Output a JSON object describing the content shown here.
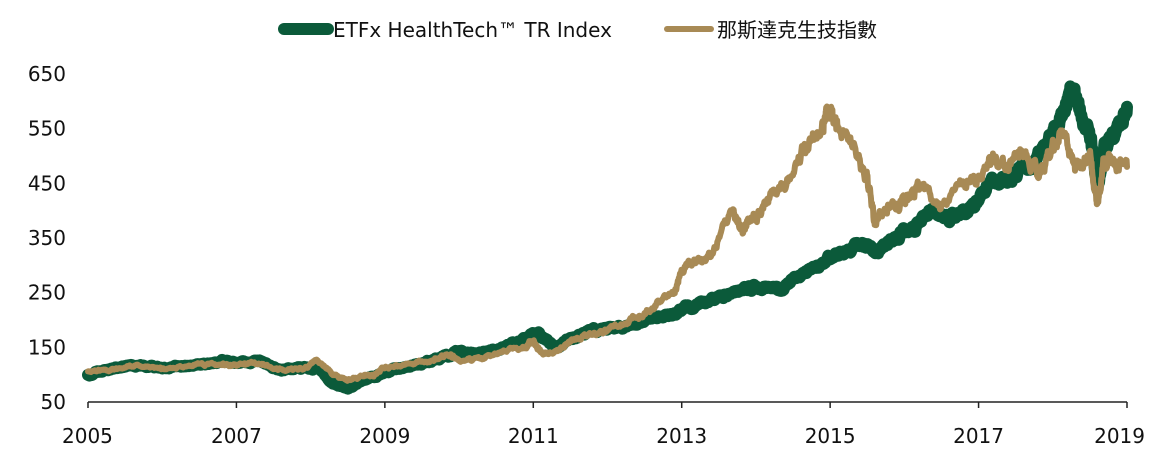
{
  "chart_data": {
    "type": "line",
    "title": "",
    "xlabel": "",
    "ylabel": "",
    "xlim": [
      2005,
      2019
    ],
    "ylim": [
      50,
      650
    ],
    "x_ticks": [
      "2005",
      "2007",
      "2009",
      "2011",
      "2013",
      "2015",
      "2017",
      "2019"
    ],
    "y_ticks": [
      "50",
      "150",
      "250",
      "350",
      "450",
      "550",
      "650"
    ],
    "grid": false,
    "legend_position": "top-center",
    "series": [
      {
        "name": "ETFx HealthTech™ TR Index",
        "color": "#0b5a3a",
        "x": [
          2005.0,
          2005.3,
          2005.6,
          2006.0,
          2006.4,
          2006.8,
          2007.0,
          2007.3,
          2007.6,
          2007.9,
          2008.1,
          2008.3,
          2008.5,
          2008.7,
          2008.85,
          2009.0,
          2009.3,
          2009.6,
          2009.85,
          2010.0,
          2010.3,
          2010.6,
          2010.9,
          2011.0,
          2011.1,
          2011.3,
          2011.5,
          2011.8,
          2012.0,
          2012.3,
          2012.6,
          2012.9,
          2013.2,
          2013.5,
          2013.8,
          2014.0,
          2014.3,
          2014.5,
          2014.8,
          2015.0,
          2015.2,
          2015.4,
          2015.6,
          2015.8,
          2016.0,
          2016.2,
          2016.4,
          2016.6,
          2016.8,
          2017.0,
          2017.2,
          2017.4,
          2017.6,
          2017.8,
          2018.0,
          2018.15,
          2018.25,
          2018.35,
          2018.5,
          2018.6,
          2018.7,
          2018.85,
          2019.0
        ],
        "values": [
          100,
          108,
          118,
          112,
          118,
          124,
          122,
          125,
          108,
          112,
          112,
          85,
          75,
          90,
          95,
          105,
          115,
          125,
          135,
          142,
          138,
          150,
          165,
          175,
          170,
          150,
          165,
          180,
          185,
          190,
          200,
          210,
          230,
          240,
          255,
          262,
          255,
          270,
          295,
          315,
          325,
          340,
          325,
          345,
          360,
          380,
          400,
          385,
          395,
          420,
          455,
          460,
          480,
          495,
          540,
          580,
          620,
          590,
          540,
          440,
          520,
          540,
          590
        ]
      },
      {
        "name": "那斯達克生技指數",
        "color": "#a88a55",
        "x": [
          2005.0,
          2005.3,
          2005.6,
          2006.0,
          2006.4,
          2006.8,
          2007.0,
          2007.3,
          2007.6,
          2007.9,
          2008.1,
          2008.3,
          2008.5,
          2008.7,
          2008.85,
          2009.0,
          2009.3,
          2009.6,
          2009.85,
          2010.0,
          2010.3,
          2010.6,
          2010.9,
          2011.0,
          2011.1,
          2011.3,
          2011.5,
          2011.8,
          2012.0,
          2012.3,
          2012.6,
          2012.9,
          2013.0,
          2013.2,
          2013.4,
          2013.7,
          2013.8,
          2014.0,
          2014.2,
          2014.5,
          2014.7,
          2014.9,
          2015.0,
          2015.1,
          2015.3,
          2015.5,
          2015.6,
          2015.8,
          2016.0,
          2016.2,
          2016.5,
          2016.8,
          2017.0,
          2017.2,
          2017.4,
          2017.6,
          2017.8,
          2018.0,
          2018.15,
          2018.3,
          2018.5,
          2018.6,
          2018.7,
          2018.85,
          2019.0
        ],
        "values": [
          105,
          108,
          118,
          110,
          118,
          120,
          118,
          122,
          110,
          110,
          125,
          100,
          90,
          98,
          100,
          112,
          120,
          125,
          138,
          125,
          130,
          145,
          150,
          160,
          140,
          140,
          160,
          175,
          185,
          200,
          220,
          250,
          280,
          310,
          320,
          400,
          370,
          390,
          420,
          470,
          520,
          560,
          590,
          560,
          520,
          460,
          380,
          410,
          420,
          440,
          410,
          450,
          460,
          490,
          480,
          500,
          470,
          510,
          550,
          480,
          500,
          410,
          500,
          490,
          480
        ]
      }
    ]
  }
}
